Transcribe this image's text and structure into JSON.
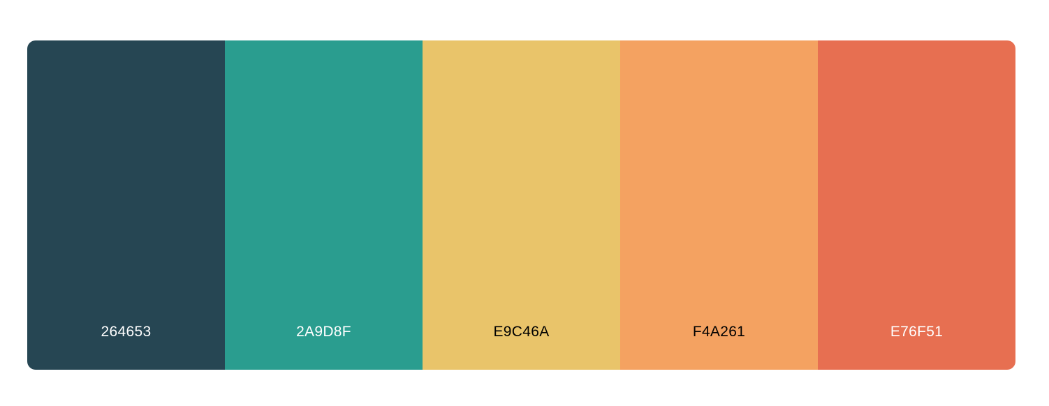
{
  "palette": {
    "swatches": [
      {
        "code": "264653",
        "color": "#264653",
        "text_color": "#ffffff"
      },
      {
        "code": "2A9D8F",
        "color": "#2A9D8F",
        "text_color": "#ffffff"
      },
      {
        "code": "E9C46A",
        "color": "#E9C46A",
        "text_color": "#000000"
      },
      {
        "code": "F4A261",
        "color": "#F4A261",
        "text_color": "#000000"
      },
      {
        "code": "E76F51",
        "color": "#E76F51",
        "text_color": "#ffffff"
      }
    ]
  }
}
